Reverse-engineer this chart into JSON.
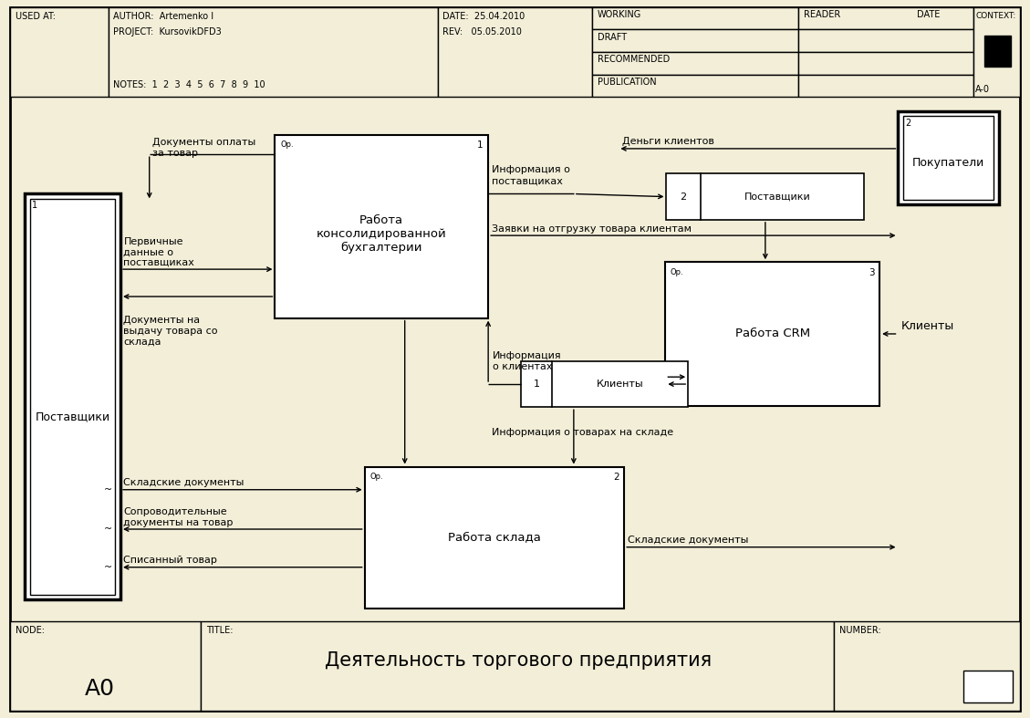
{
  "bg_color": "#f2eed8",
  "white": "#ffffff",
  "border_color": "#000000",
  "title": "Деятельность торгового предприятия",
  "node": "A0",
  "header": {
    "used_at": "USED AT:",
    "author": "AUTHOR:  Artemenko I",
    "project": "PROJECT:  KursovikDFD3",
    "date": "DATE:  25.04.2010",
    "rev": "REV:   05.05.2010",
    "notes": "NOTES:  1  2  3  4  5  6  7  8  9  10",
    "working": "WORKING",
    "draft": "DRAFT",
    "recommended": "RECOMMENDED",
    "publication": "PUBLICATION",
    "reader": "READER",
    "date_col": "DATE",
    "context": "CONTEXT:",
    "a0_label": "A-0"
  },
  "figw": 11.29,
  "figh": 7.87
}
